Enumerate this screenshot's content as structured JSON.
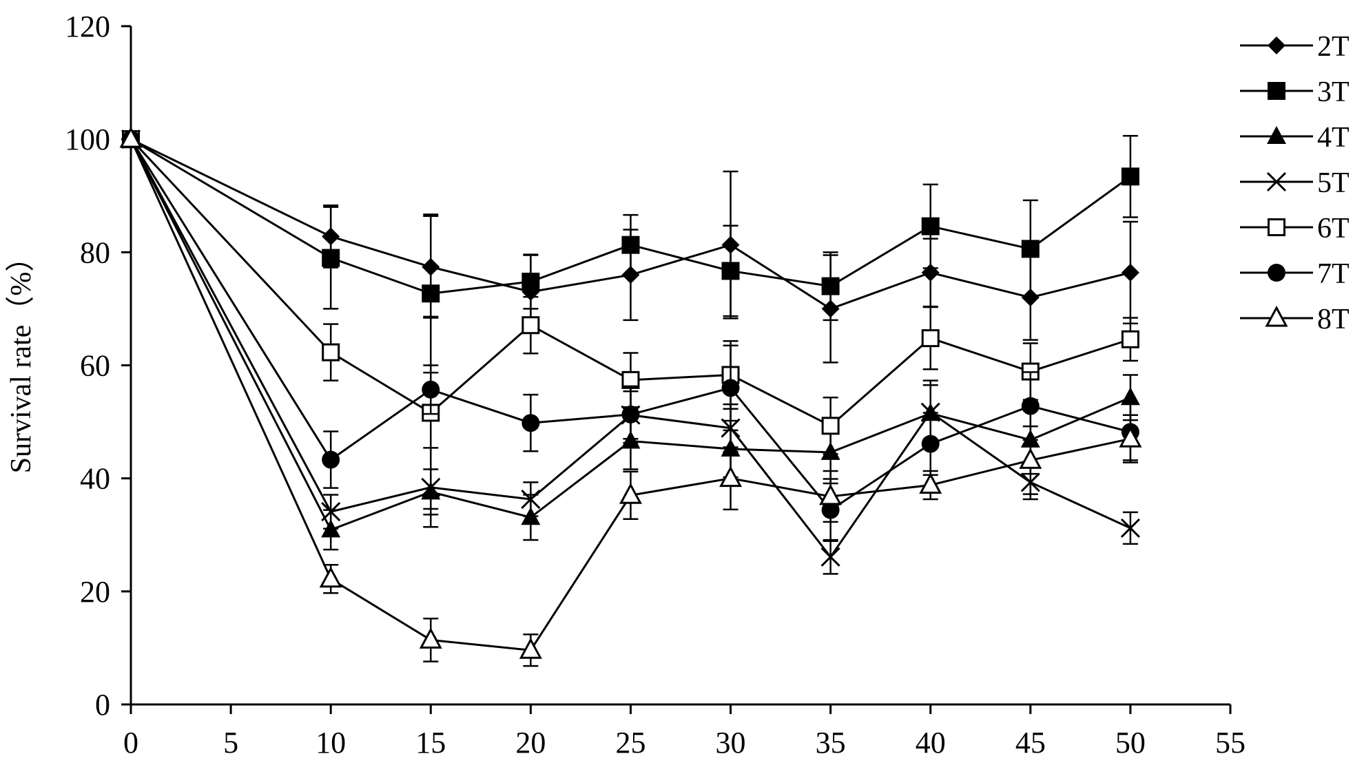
{
  "chart_data": {
    "type": "line",
    "title": "",
    "xlabel": "",
    "ylabel": "Survival rate（%）",
    "xlim": [
      0,
      55
    ],
    "ylim": [
      0,
      120
    ],
    "xticks": [
      "0",
      "5",
      "10",
      "15",
      "20",
      "25",
      "30",
      "35",
      "40",
      "45",
      "50",
      "55"
    ],
    "yticks": [
      "0",
      "20",
      "40",
      "60",
      "80",
      "100",
      "120"
    ],
    "grid": false,
    "legend_position": "right",
    "x": [
      0,
      10,
      15,
      20,
      25,
      30,
      35,
      40,
      45,
      50
    ],
    "series": [
      {
        "name": "2T",
        "marker": "diamond",
        "values": [
          100,
          82.8,
          77.4,
          73.0,
          76.0,
          81.3,
          70.0,
          76.4,
          72.0,
          76.4
        ],
        "errors": [
          0,
          5.5,
          9.0,
          6.5,
          8.0,
          13.0,
          9.5,
          6.0,
          7.5,
          9.0
        ]
      },
      {
        "name": "3T",
        "marker": "square-filled",
        "values": [
          100,
          79.0,
          72.7,
          74.8,
          81.3,
          76.7,
          74.0,
          84.6,
          80.6,
          93.4
        ],
        "errors": [
          0,
          9.0,
          14.0,
          4.8,
          5.3,
          8.0,
          6.0,
          7.4,
          8.6,
          7.2
        ]
      },
      {
        "name": "4T",
        "marker": "triangle-filled",
        "values": [
          100,
          30.9,
          37.6,
          33.1,
          46.6,
          45.2,
          44.6,
          51.5,
          46.8,
          54.3
        ],
        "errors": [
          0,
          3.5,
          4.0,
          4.0,
          5.0,
          5.0,
          5.5,
          5.8,
          6.0,
          4.0
        ]
      },
      {
        "name": "5T",
        "marker": "x",
        "values": [
          100,
          34.1,
          38.4,
          36.3,
          51.2,
          48.9,
          26.1,
          51.7,
          39.3,
          31.2
        ],
        "errors": [
          0,
          3.0,
          7.0,
          3.0,
          4.2,
          4.2,
          3.0,
          4.8,
          3.0,
          2.8
        ]
      },
      {
        "name": "6T",
        "marker": "square-open",
        "values": [
          100,
          62.3,
          51.6,
          67.1,
          57.4,
          58.3,
          49.3,
          64.8,
          58.9,
          64.6
        ],
        "errors": [
          0,
          5.0,
          17.0,
          5.0,
          4.8,
          6.0,
          5.0,
          5.5,
          5.0,
          3.8
        ]
      },
      {
        "name": "7T",
        "marker": "circle-filled",
        "values": [
          100,
          43.3,
          55.7,
          49.8,
          51.3,
          56.0,
          34.4,
          46.1,
          52.8,
          48.2
        ],
        "errors": [
          0,
          5.0,
          4.3,
          5.0,
          5.0,
          7.5,
          5.5,
          5.5,
          6.0,
          5.0
        ]
      },
      {
        "name": "8T",
        "marker": "triangle-open",
        "values": [
          100,
          22.2,
          11.4,
          9.6,
          37.0,
          40.0,
          36.8,
          38.8,
          43.2,
          47.0
        ],
        "errors": [
          0,
          2.5,
          3.8,
          2.8,
          4.2,
          5.5,
          4.5,
          2.5,
          6.0,
          4.2
        ]
      }
    ]
  }
}
